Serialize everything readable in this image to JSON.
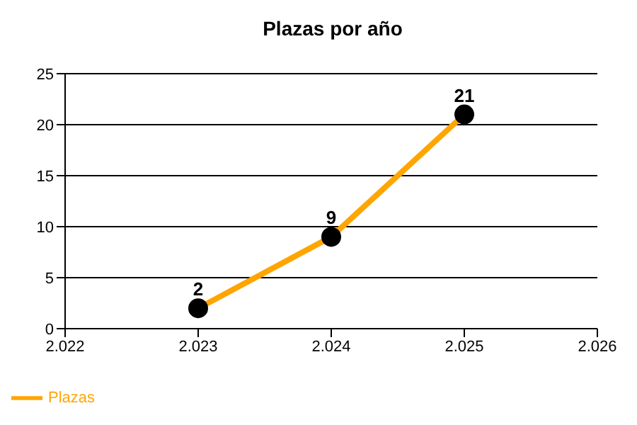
{
  "chart_data": {
    "type": "line",
    "title": "Plazas por año",
    "x": [
      2023,
      2024,
      2025
    ],
    "series": [
      {
        "name": "Plazas",
        "color": "#ffa500",
        "values": [
          2,
          9,
          21
        ]
      }
    ],
    "xlim": [
      2022,
      2026
    ],
    "xticks": [
      {
        "value": 2022,
        "label": "2.022"
      },
      {
        "value": 2023,
        "label": "2.023"
      },
      {
        "value": 2024,
        "label": "2.024"
      },
      {
        "value": 2025,
        "label": "2.025"
      },
      {
        "value": 2026,
        "label": "2.026"
      }
    ],
    "ylim": [
      0,
      25
    ],
    "yticks": [
      0,
      5,
      10,
      15,
      20,
      25
    ],
    "grid": "y",
    "legend": "bottom left",
    "marker": "circle",
    "line_style": "solid",
    "data_labels": true
  }
}
